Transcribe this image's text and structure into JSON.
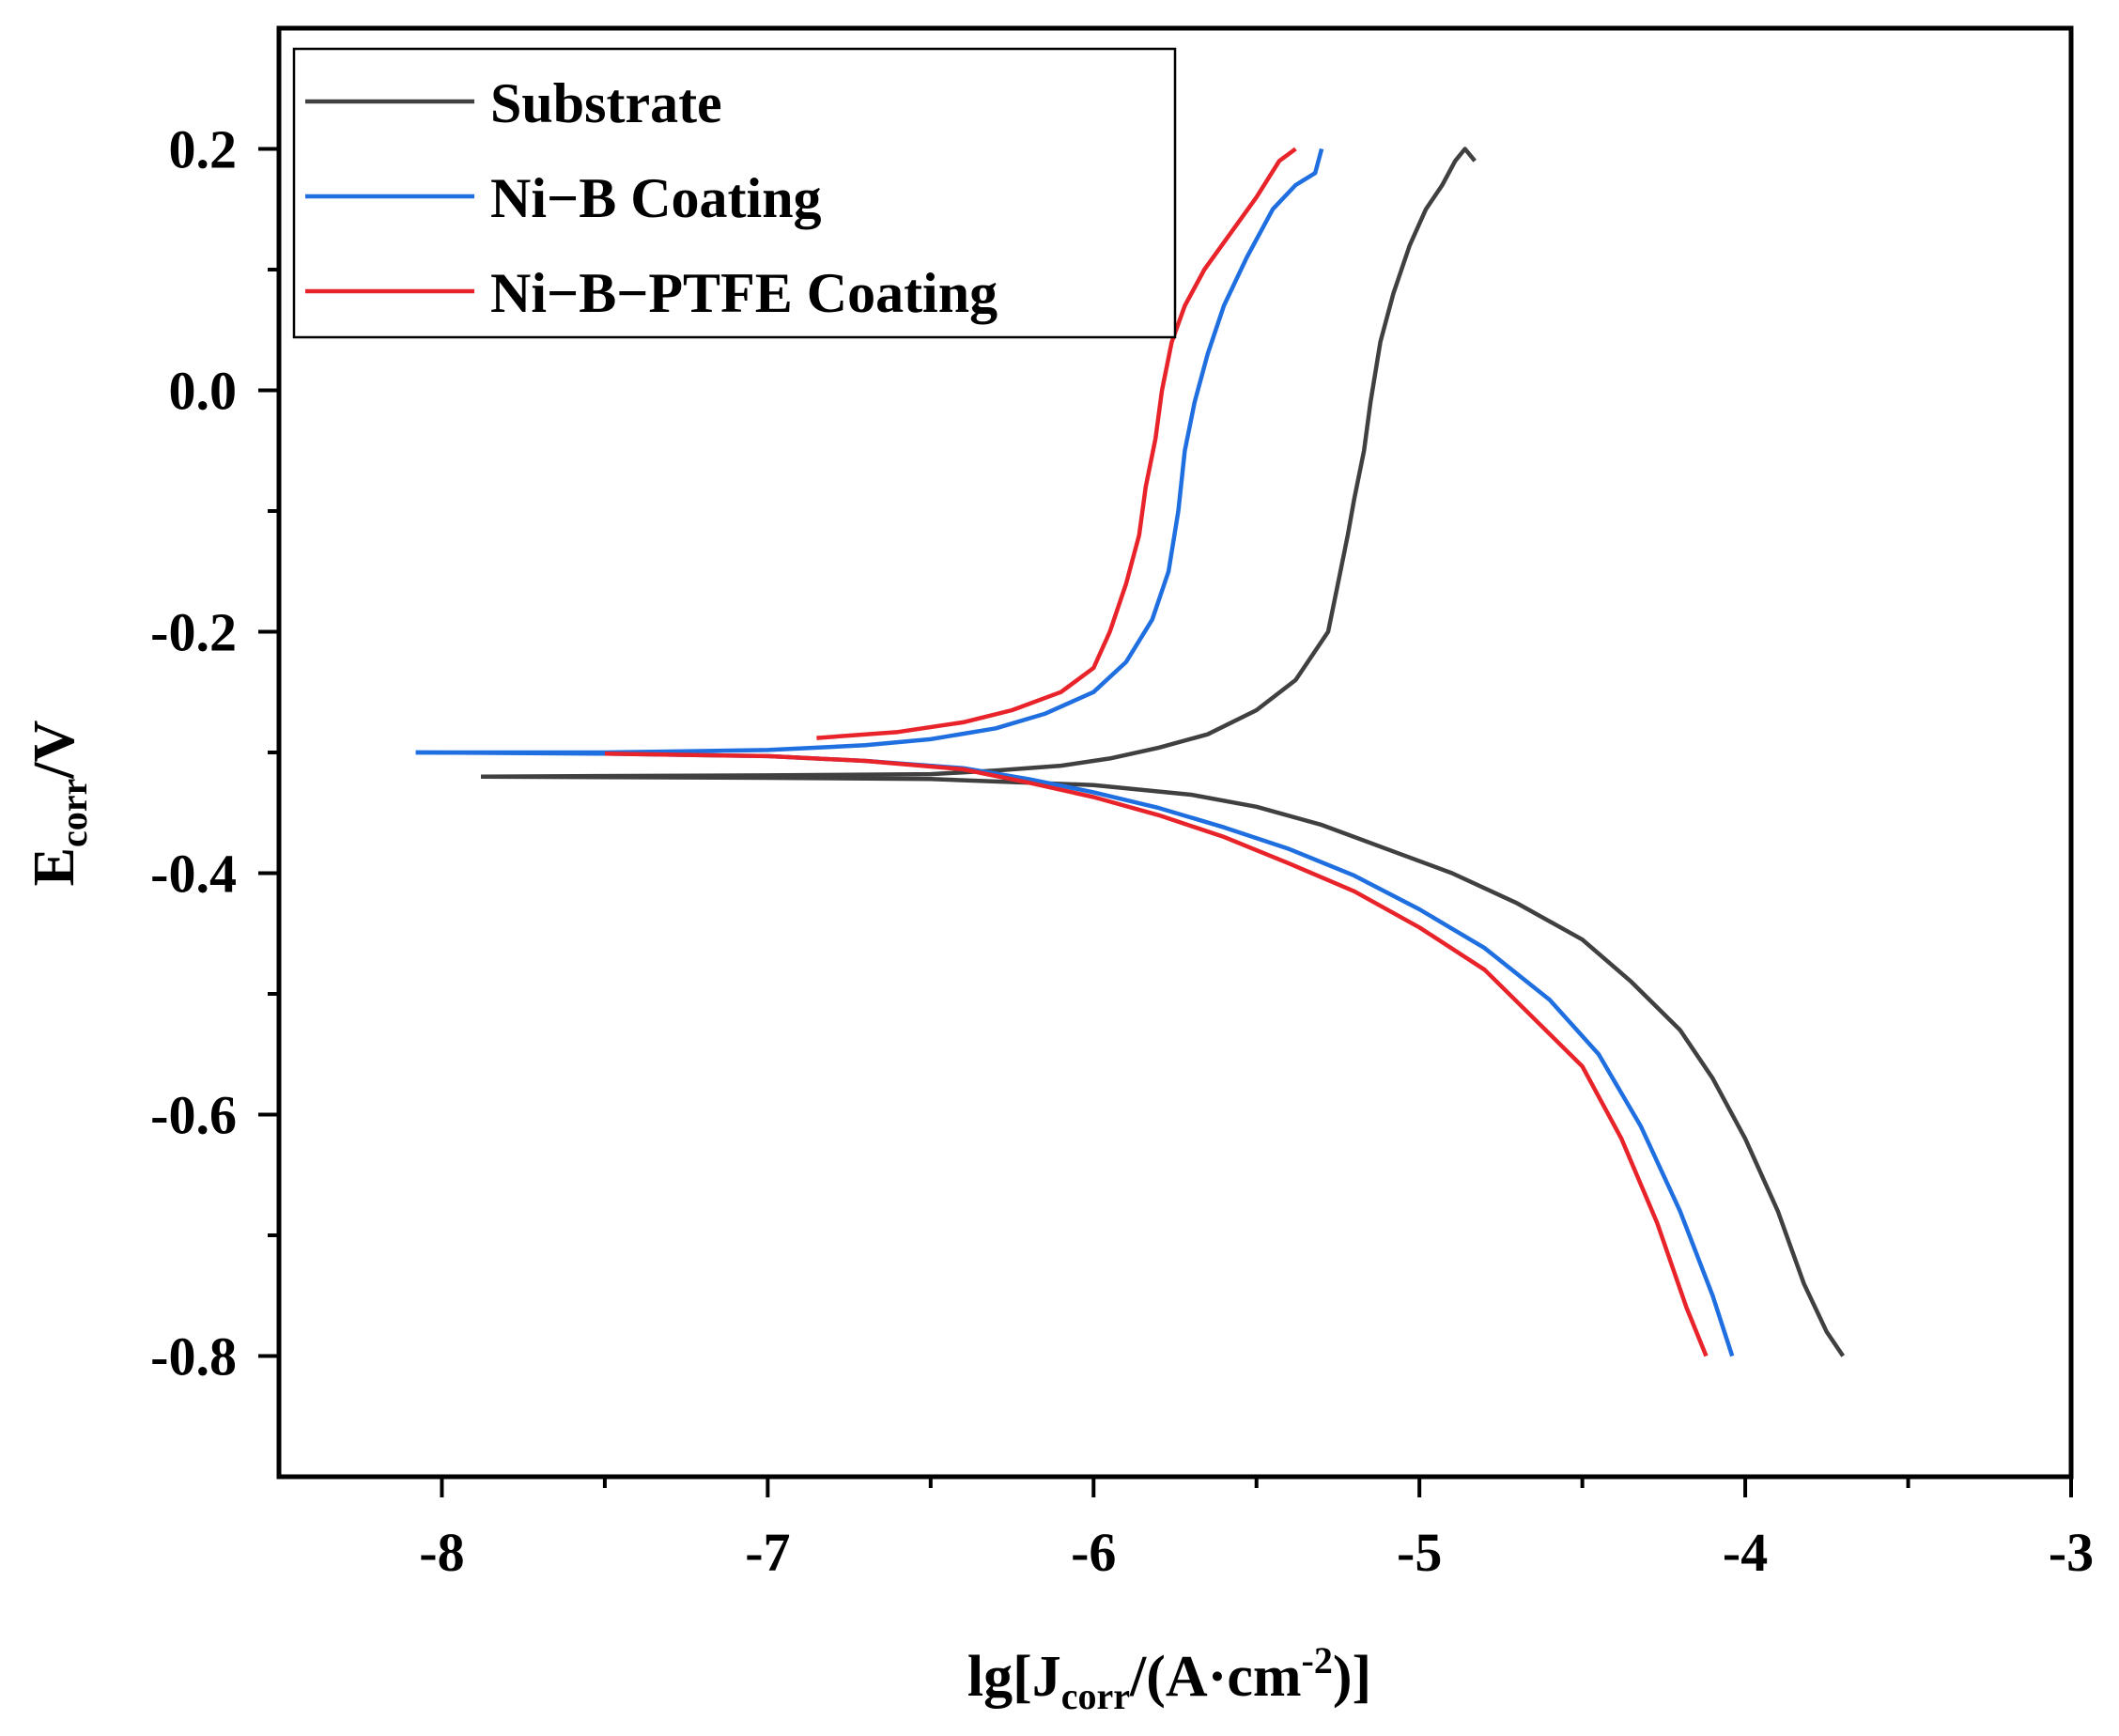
{
  "chart_data": {
    "type": "line",
    "title": "",
    "xlabel": {
      "prefix": "lg[J",
      "sub": "corr",
      "mid": "/(A·cm",
      "sup": "-2",
      "suffix": ")]"
    },
    "ylabel": {
      "main": "E",
      "sub": "corr",
      "suffix": "/V"
    },
    "xlim": [
      -8.5,
      -3
    ],
    "ylim": [
      -0.9,
      0.3
    ],
    "x_ticks": [
      -8,
      -7,
      -6,
      -5,
      -4,
      -3
    ],
    "x_tick_labels": [
      "-8",
      "-7",
      "-6",
      "-5",
      "-4",
      "-3"
    ],
    "x_minor_ticks": [
      -7.5,
      -6.5,
      -5.5,
      -4.5,
      -3.5
    ],
    "y_ticks": [
      -0.8,
      -0.6,
      -0.4,
      -0.2,
      0.0,
      0.2
    ],
    "y_tick_labels": [
      "-0.8",
      "-0.6",
      "-0.4",
      "-0.2",
      "0.0",
      "0.2"
    ],
    "y_minor_ticks": [
      -0.7,
      -0.5,
      -0.3,
      -0.1,
      0.1
    ],
    "grid": false,
    "legend_position": "top-left",
    "series": [
      {
        "name": "Substrate",
        "color": "#404040",
        "anodic": [
          [
            -7.88,
            -0.32
          ],
          [
            -7.0,
            -0.319
          ],
          [
            -6.5,
            -0.318
          ],
          [
            -6.3,
            -0.315
          ],
          [
            -6.1,
            -0.311
          ],
          [
            -5.95,
            -0.305
          ],
          [
            -5.8,
            -0.296
          ],
          [
            -5.65,
            -0.285
          ],
          [
            -5.5,
            -0.265
          ],
          [
            -5.38,
            -0.24
          ],
          [
            -5.28,
            -0.2
          ],
          [
            -5.25,
            -0.16
          ],
          [
            -5.22,
            -0.12
          ],
          [
            -5.2,
            -0.09
          ],
          [
            -5.17,
            -0.05
          ],
          [
            -5.15,
            -0.01
          ],
          [
            -5.12,
            0.04
          ],
          [
            -5.08,
            0.08
          ],
          [
            -5.03,
            0.12
          ],
          [
            -4.98,
            0.15
          ],
          [
            -4.93,
            0.17
          ],
          [
            -4.89,
            0.19
          ],
          [
            -4.86,
            0.2
          ],
          [
            -4.83,
            0.19
          ]
        ],
        "cathodic": [
          [
            -7.88,
            -0.32
          ],
          [
            -7.0,
            -0.321
          ],
          [
            -6.5,
            -0.322
          ],
          [
            -6.0,
            -0.327
          ],
          [
            -5.7,
            -0.335
          ],
          [
            -5.5,
            -0.345
          ],
          [
            -5.3,
            -0.36
          ],
          [
            -5.1,
            -0.38
          ],
          [
            -4.9,
            -0.4
          ],
          [
            -4.7,
            -0.425
          ],
          [
            -4.5,
            -0.455
          ],
          [
            -4.35,
            -0.49
          ],
          [
            -4.2,
            -0.53
          ],
          [
            -4.1,
            -0.57
          ],
          [
            -4.0,
            -0.62
          ],
          [
            -3.9,
            -0.68
          ],
          [
            -3.82,
            -0.74
          ],
          [
            -3.75,
            -0.78
          ],
          [
            -3.7,
            -0.8
          ]
        ]
      },
      {
        "name": "Ni−B Coating",
        "color": "#1f6fe0",
        "anodic": [
          [
            -8.08,
            -0.3
          ],
          [
            -7.5,
            -0.3
          ],
          [
            -7.0,
            -0.298
          ],
          [
            -6.7,
            -0.294
          ],
          [
            -6.5,
            -0.289
          ],
          [
            -6.3,
            -0.28
          ],
          [
            -6.15,
            -0.268
          ],
          [
            -6.0,
            -0.25
          ],
          [
            -5.9,
            -0.225
          ],
          [
            -5.82,
            -0.19
          ],
          [
            -5.77,
            -0.15
          ],
          [
            -5.74,
            -0.1
          ],
          [
            -5.72,
            -0.05
          ],
          [
            -5.69,
            -0.01
          ],
          [
            -5.65,
            0.03
          ],
          [
            -5.6,
            0.07
          ],
          [
            -5.53,
            0.11
          ],
          [
            -5.45,
            0.15
          ],
          [
            -5.38,
            0.17
          ],
          [
            -5.32,
            0.18
          ],
          [
            -5.3,
            0.2
          ]
        ],
        "cathodic": [
          [
            -8.08,
            -0.3
          ],
          [
            -7.5,
            -0.301
          ],
          [
            -7.0,
            -0.303
          ],
          [
            -6.7,
            -0.307
          ],
          [
            -6.4,
            -0.313
          ],
          [
            -6.2,
            -0.322
          ],
          [
            -6.0,
            -0.333
          ],
          [
            -5.8,
            -0.346
          ],
          [
            -5.6,
            -0.362
          ],
          [
            -5.4,
            -0.38
          ],
          [
            -5.2,
            -0.402
          ],
          [
            -5.0,
            -0.43
          ],
          [
            -4.8,
            -0.462
          ],
          [
            -4.6,
            -0.505
          ],
          [
            -4.45,
            -0.55
          ],
          [
            -4.32,
            -0.61
          ],
          [
            -4.2,
            -0.68
          ],
          [
            -4.1,
            -0.75
          ],
          [
            -4.04,
            -0.8
          ]
        ]
      },
      {
        "name": "Ni−B−PTFE Coating",
        "color": "#e8232a",
        "anodic": [
          [
            -6.85,
            -0.288
          ],
          [
            -6.6,
            -0.283
          ],
          [
            -6.4,
            -0.275
          ],
          [
            -6.25,
            -0.265
          ],
          [
            -6.1,
            -0.25
          ],
          [
            -6.0,
            -0.23
          ],
          [
            -5.95,
            -0.2
          ],
          [
            -5.9,
            -0.16
          ],
          [
            -5.86,
            -0.12
          ],
          [
            -5.84,
            -0.08
          ],
          [
            -5.81,
            -0.04
          ],
          [
            -5.79,
            0.0
          ],
          [
            -5.76,
            0.04
          ],
          [
            -5.72,
            0.07
          ],
          [
            -5.66,
            0.1
          ],
          [
            -5.58,
            0.13
          ],
          [
            -5.5,
            0.16
          ],
          [
            -5.43,
            0.19
          ],
          [
            -5.38,
            0.2
          ]
        ],
        "cathodic": [
          [
            -7.5,
            -0.301
          ],
          [
            -7.0,
            -0.303
          ],
          [
            -6.7,
            -0.307
          ],
          [
            -6.4,
            -0.314
          ],
          [
            -6.2,
            -0.325
          ],
          [
            -6.0,
            -0.337
          ],
          [
            -5.8,
            -0.352
          ],
          [
            -5.6,
            -0.37
          ],
          [
            -5.4,
            -0.392
          ],
          [
            -5.2,
            -0.415
          ],
          [
            -5.0,
            -0.445
          ],
          [
            -4.8,
            -0.48
          ],
          [
            -4.65,
            -0.52
          ],
          [
            -4.5,
            -0.56
          ],
          [
            -4.38,
            -0.62
          ],
          [
            -4.27,
            -0.69
          ],
          [
            -4.18,
            -0.76
          ],
          [
            -4.12,
            -0.8
          ]
        ]
      }
    ]
  }
}
